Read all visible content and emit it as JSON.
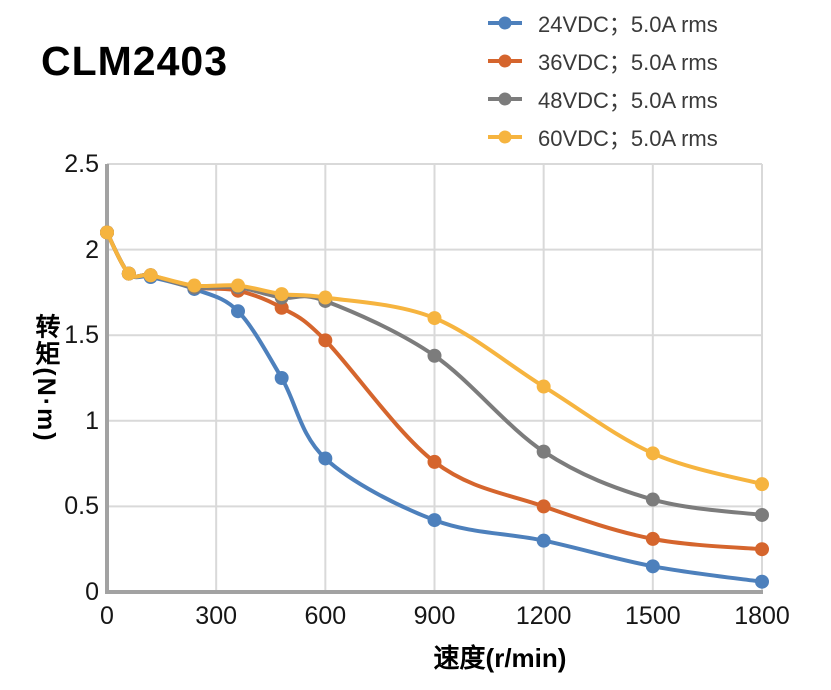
{
  "title": "CLM2403",
  "chart_data": {
    "type": "line",
    "title": "CLM2403",
    "xlabel": "速度(r/min)",
    "ylabel": "转矩(N·m)",
    "xlim": [
      0,
      1800
    ],
    "ylim": [
      0,
      2.5
    ],
    "x_ticks": [
      0,
      300,
      600,
      900,
      1200,
      1500,
      1800
    ],
    "y_ticks": [
      0,
      0.5,
      1,
      1.5,
      2,
      2.5
    ],
    "grid": true,
    "legend_position": "top-right",
    "marker": "circle",
    "x": [
      0,
      60,
      120,
      240,
      360,
      480,
      600,
      900,
      1200,
      1500,
      1800
    ],
    "series": [
      {
        "name": "24VDC；5.0A rms",
        "color": "#4D80BC",
        "values": [
          2.1,
          1.86,
          1.84,
          1.77,
          1.64,
          1.25,
          0.78,
          0.42,
          0.3,
          0.15,
          0.06
        ]
      },
      {
        "name": "36VDC；5.0A rms",
        "color": "#D5652D",
        "values": [
          2.1,
          1.86,
          1.85,
          1.78,
          1.76,
          1.66,
          1.47,
          0.76,
          0.5,
          0.31,
          0.25
        ]
      },
      {
        "name": "48VDC；5.0A rms",
        "color": "#7C7C7C",
        "values": [
          2.1,
          1.86,
          1.85,
          1.78,
          1.78,
          1.72,
          1.7,
          1.38,
          0.82,
          0.54,
          0.45
        ]
      },
      {
        "name": "60VDC；5.0A rms",
        "color": "#F6B43F",
        "values": [
          2.1,
          1.86,
          1.85,
          1.79,
          1.79,
          1.74,
          1.72,
          1.6,
          1.2,
          0.81,
          0.63
        ]
      }
    ]
  },
  "colors": {
    "grid": "#D9D9D9",
    "axis": "#A2A2A2",
    "tick_text": "#161616",
    "legend_text": "#3A3A3A",
    "title_text": "#000000"
  }
}
